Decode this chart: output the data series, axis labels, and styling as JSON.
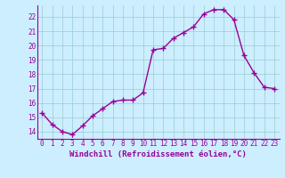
{
  "x": [
    0,
    1,
    2,
    3,
    4,
    5,
    6,
    7,
    8,
    9,
    10,
    11,
    12,
    13,
    14,
    15,
    16,
    17,
    18,
    19,
    20,
    21,
    22,
    23
  ],
  "y": [
    15.3,
    14.5,
    14.0,
    13.8,
    14.4,
    15.1,
    15.6,
    16.1,
    16.2,
    16.2,
    16.7,
    19.7,
    19.8,
    20.5,
    20.9,
    21.3,
    22.2,
    22.5,
    22.5,
    21.8,
    19.3,
    18.1,
    17.1,
    17.0
  ],
  "line_color": "#990099",
  "marker": "+",
  "markersize": 4,
  "markeredgewidth": 1.0,
  "linewidth": 1.0,
  "bg_color": "#cceeff",
  "grid_color": "#99cccc",
  "tick_label_color": "#990099",
  "xlabel": "Windchill (Refroidissement éolien,°C)",
  "xlabel_color": "#990099",
  "xlim": [
    -0.5,
    23.5
  ],
  "ylim": [
    13.5,
    22.8
  ],
  "yticks": [
    14,
    15,
    16,
    17,
    18,
    19,
    20,
    21,
    22
  ],
  "xticks": [
    0,
    1,
    2,
    3,
    4,
    5,
    6,
    7,
    8,
    9,
    10,
    11,
    12,
    13,
    14,
    15,
    16,
    17,
    18,
    19,
    20,
    21,
    22,
    23
  ],
  "tick_fontsize": 5.5,
  "xlabel_fontsize": 6.5
}
